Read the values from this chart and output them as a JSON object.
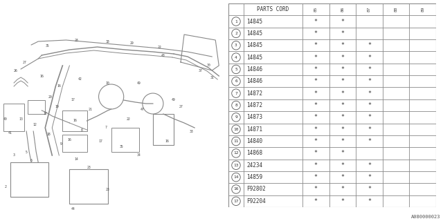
{
  "diagram_label": "A080000023",
  "table_header": "PARTS CORD",
  "col_headers": [
    "85",
    "86",
    "87",
    "88",
    "89"
  ],
  "rows": [
    {
      "num": 1,
      "part": "14845",
      "marks": [
        true,
        true,
        false,
        false,
        false
      ]
    },
    {
      "num": 2,
      "part": "14845",
      "marks": [
        true,
        true,
        false,
        false,
        false
      ]
    },
    {
      "num": 3,
      "part": "14845",
      "marks": [
        true,
        true,
        true,
        false,
        false
      ]
    },
    {
      "num": 4,
      "part": "14845",
      "marks": [
        true,
        true,
        true,
        false,
        false
      ]
    },
    {
      "num": 5,
      "part": "14846",
      "marks": [
        true,
        true,
        true,
        false,
        false
      ]
    },
    {
      "num": 6,
      "part": "14846",
      "marks": [
        true,
        true,
        true,
        false,
        false
      ]
    },
    {
      "num": 7,
      "part": "14872",
      "marks": [
        true,
        true,
        true,
        false,
        false
      ]
    },
    {
      "num": 8,
      "part": "14872",
      "marks": [
        true,
        true,
        true,
        false,
        false
      ]
    },
    {
      "num": 9,
      "part": "14873",
      "marks": [
        true,
        true,
        true,
        false,
        false
      ]
    },
    {
      "num": 10,
      "part": "14871",
      "marks": [
        true,
        true,
        true,
        false,
        false
      ]
    },
    {
      "num": 11,
      "part": "14840",
      "marks": [
        true,
        true,
        true,
        false,
        false
      ]
    },
    {
      "num": 12,
      "part": "14868",
      "marks": [
        true,
        true,
        false,
        false,
        false
      ]
    },
    {
      "num": 13,
      "part": "24234",
      "marks": [
        true,
        true,
        true,
        false,
        false
      ]
    },
    {
      "num": 14,
      "part": "14859",
      "marks": [
        true,
        true,
        true,
        false,
        false
      ]
    },
    {
      "num": 16,
      "part": "F92802",
      "marks": [
        true,
        true,
        true,
        false,
        false
      ]
    },
    {
      "num": 17,
      "part": "F92204",
      "marks": [
        true,
        true,
        true,
        false,
        false
      ]
    }
  ],
  "bg_color": "#ffffff",
  "line_color": "#777777",
  "text_color": "#333333"
}
